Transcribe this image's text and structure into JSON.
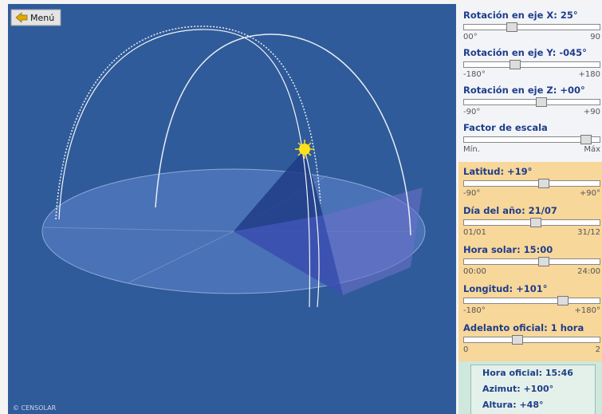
{
  "menu_button": "Menú",
  "credit": "© CENSOLAR",
  "view_controls": [
    {
      "label": "Rotación en eje X: 25°",
      "min": "00°",
      "max": "90"
    },
    {
      "label": "Rotación en eje Y: -045°",
      "min": "-180°",
      "max": "+180"
    },
    {
      "label": "Rotación en eje Z: +00°",
      "min": "-90°",
      "max": "+90"
    },
    {
      "label": "Factor de escala",
      "min": "Mín.",
      "max": "Máx"
    }
  ],
  "sun_controls": [
    {
      "label": "Latitud: +19°",
      "min": "-90°",
      "max": "+90°"
    },
    {
      "label": "Día del año: 21/07",
      "min": "01/01",
      "max": "31/12"
    },
    {
      "label": "Hora solar: 15:00",
      "min": "00:00",
      "max": "24:00"
    },
    {
      "label": "Longitud: +101°",
      "min": "-180°",
      "max": "+180°"
    },
    {
      "label": "Adelanto oficial: 1 hora",
      "min": "0",
      "max": "2"
    }
  ],
  "results": [
    "Hora oficial: 15:46",
    "Azimut: +100°",
    "Altura: +48°"
  ]
}
